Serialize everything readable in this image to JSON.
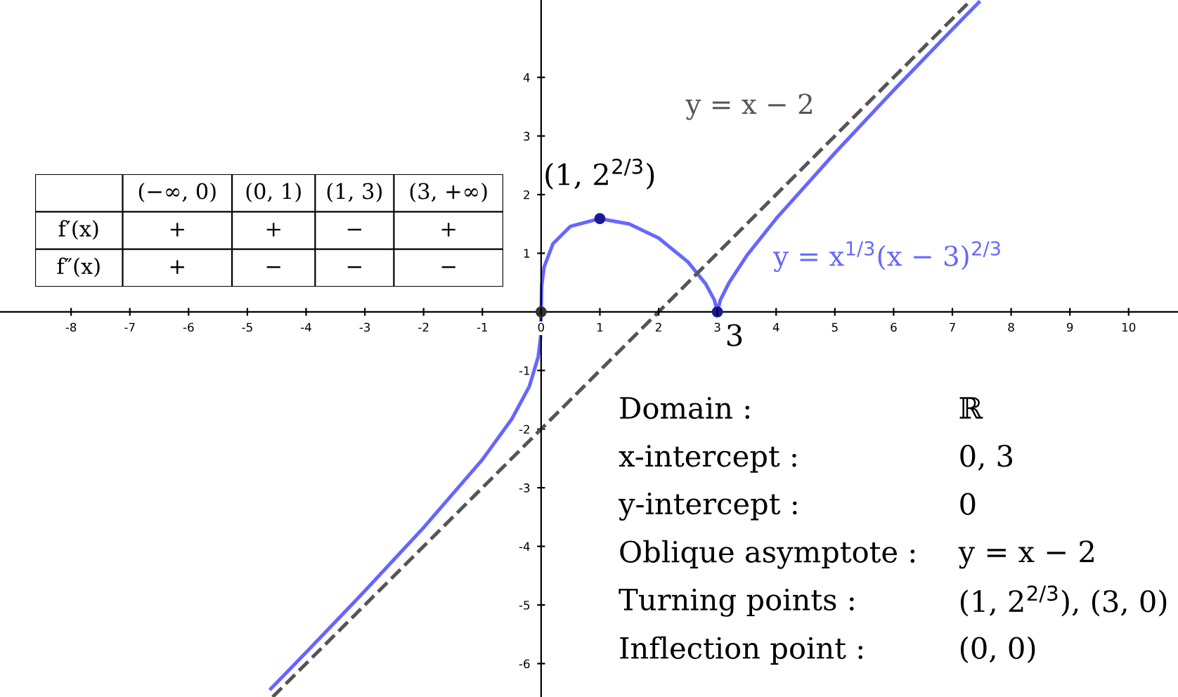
{
  "chart_data": [
    {
      "type": "line",
      "xlim": [
        -9.21,
        10.84
      ],
      "ylim": [
        -6.57,
        5.32
      ],
      "xticks": [
        -8,
        -7,
        -6,
        -5,
        -4,
        -3,
        -2,
        -1,
        0,
        1,
        2,
        3,
        4,
        5,
        6,
        7,
        8,
        9,
        10
      ],
      "yticks": [
        -6,
        -5,
        -4,
        -3,
        -2,
        -1,
        1,
        2,
        3,
        4
      ],
      "grid": false,
      "series": [
        {
          "name": "y = x$^{1/3}$(x − 3)$^{2/3}$",
          "color": "#6666ff",
          "line_style": "solid",
          "x": [
            -4.6,
            -4,
            -3,
            -2,
            -1,
            -0.5,
            -0.2,
            -0.05,
            -0.01,
            0,
            0.01,
            0.05,
            0.2,
            0.5,
            1,
            1.5,
            2,
            2.5,
            2.8,
            2.95,
            3,
            3.05,
            3.2,
            3.5,
            4,
            5,
            6,
            7,
            7.45
          ],
          "values": [
            -6.43,
            -5.81,
            -4.76,
            -3.68,
            -2.52,
            -1.83,
            -1.27,
            -0.77,
            -0.45,
            0,
            0.45,
            0.76,
            1.16,
            1.46,
            1.59,
            1.5,
            1.26,
            0.85,
            0.48,
            0.2,
            0,
            0.2,
            0.5,
            0.96,
            1.59,
            2.71,
            3.78,
            4.82,
            5.28
          ]
        },
        {
          "name": "y = x − 2",
          "color": "#555555",
          "line_style": "dashed",
          "x": [
            -4.57,
            7.32
          ],
          "values": [
            -6.57,
            5.32
          ]
        },
        {
          "type": "scatter",
          "x": [
            0,
            1,
            3
          ],
          "values": [
            0,
            1.59,
            0
          ],
          "colors": [
            "#333333",
            "#1a1a99",
            "#1a1a99"
          ]
        }
      ],
      "annotations": [
        {
          "text": "(1, 2$^{2/3}$)",
          "x": 1,
          "y": 1.59
        },
        {
          "text": "3",
          "x": 3,
          "y": 0
        }
      ]
    },
    {
      "type": "other",
      "annotations": [
        "(−∞, 0)",
        "(0, 1)",
        "(1, 3)",
        "(3, +∞)",
        "f′(x)",
        "+",
        "+",
        "−",
        "+",
        "f″(x)",
        "+",
        "−",
        "−",
        "−"
      ]
    },
    {
      "type": "other",
      "annotations": [
        "Domain :",
        "ℝ",
        "x-intercept :",
        "0, 3",
        "y-intercept :",
        "0",
        "Oblique asymptote :",
        "y = x − 2",
        "Turning points :",
        "(1, 2$^{2/3}$), (3, 0)",
        "Inflection point :",
        "(0, 0)"
      ]
    }
  ]
}
